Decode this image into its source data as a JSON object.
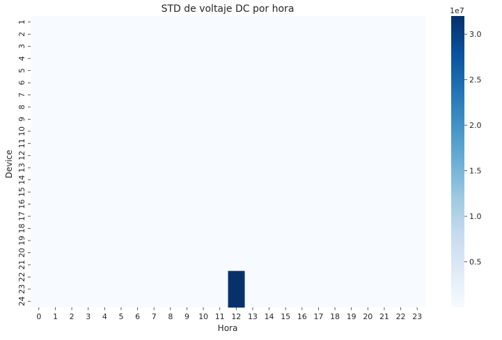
{
  "chart_data": {
    "type": "heatmap",
    "title": "STD de voltaje DC por hora",
    "xlabel": "Hora",
    "ylabel": "Device",
    "x": [
      "0",
      "1",
      "2",
      "3",
      "4",
      "5",
      "6",
      "7",
      "8",
      "9",
      "10",
      "11",
      "12",
      "13",
      "14",
      "15",
      "16",
      "17",
      "18",
      "19",
      "20",
      "21",
      "22",
      "23"
    ],
    "y": [
      "1",
      "2",
      "3",
      "4",
      "5",
      "6",
      "7",
      "8",
      "9",
      "10",
      "11",
      "12",
      "13",
      "14",
      "15",
      "16",
      "17",
      "18",
      "19",
      "20",
      "21",
      "22",
      "23",
      "24"
    ],
    "cells": [
      {
        "x": "12",
        "y": "22",
        "value": 32000000
      },
      {
        "x": "12",
        "y": "23",
        "value": 32000000
      },
      {
        "x": "12",
        "y": "24",
        "value": 32000000
      }
    ],
    "background_value": 0,
    "colorbar": {
      "colormap": "Blues",
      "min": 0,
      "max": 32000000,
      "ticks": [
        0.5,
        1.0,
        1.5,
        2.0,
        2.5,
        3.0
      ],
      "tick_labels": [
        "0.5",
        "1.0",
        "1.5",
        "2.0",
        "2.5",
        "3.0"
      ],
      "scale_label": "1e7",
      "low_color": "#f7fbff",
      "high_color": "#08306b"
    }
  }
}
